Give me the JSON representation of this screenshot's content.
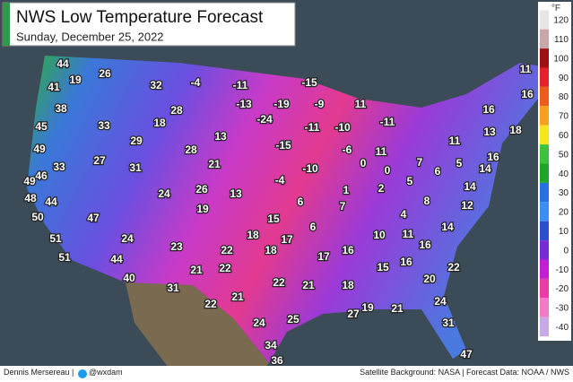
{
  "header": {
    "title": "NWS Low Temperature Forecast",
    "subtitle": "Sunday, December 25, 2022"
  },
  "legend": {
    "unit": "°F",
    "ticks": [
      120,
      110,
      100,
      90,
      80,
      70,
      60,
      50,
      40,
      30,
      20,
      10,
      0,
      -10,
      -20,
      -30,
      -40
    ],
    "colors": [
      "#e6e6e6",
      "#c9a7a7",
      "#a01010",
      "#e8202a",
      "#f05a1e",
      "#f6a11b",
      "#f7e51e",
      "#40c040",
      "#1fa52a",
      "#2a6fe0",
      "#3c8ff0",
      "#2a4fd0",
      "#7b2ad8",
      "#c020d0",
      "#ee3aa8",
      "#f07ac8",
      "#c8a8e8"
    ]
  },
  "labels": [
    44,
    19,
    26,
    32,
    -4,
    -11,
    -15,
    41,
    38,
    -13,
    -19,
    -9,
    11,
    11,
    16,
    28,
    -24,
    18,
    33,
    45,
    13,
    -11,
    -10,
    -11,
    16,
    13,
    18,
    29,
    11,
    49,
    28,
    -15,
    -6,
    11,
    7,
    16,
    27,
    31,
    21,
    -10,
    0,
    0,
    6,
    5,
    14,
    33,
    46,
    49,
    -4,
    26,
    13,
    1,
    2,
    5,
    14,
    48,
    44,
    24,
    6,
    7,
    8,
    12,
    19,
    50,
    47,
    15,
    4,
    14,
    6,
    10,
    11,
    18,
    17,
    24,
    51,
    23,
    22,
    18,
    17,
    16,
    16,
    51,
    44,
    21,
    22,
    15,
    16,
    22,
    40,
    31,
    22,
    21,
    18,
    20,
    22,
    21,
    19,
    21,
    24,
    27,
    24,
    25,
    31,
    34,
    36,
    47
  ],
  "footer": {
    "author": "Dennis Mersereau |",
    "handle": "@wxdam",
    "credits": "Satellite Background: NASA | Forecast Data: NOAA / NWS"
  }
}
